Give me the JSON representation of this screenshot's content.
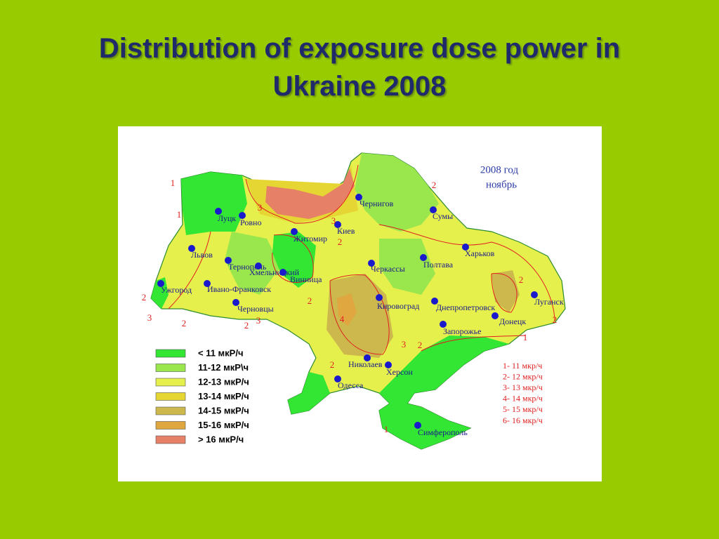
{
  "title": "Distribution of exposure dose power in Ukraine 2008",
  "map": {
    "header": [
      "2008 год",
      "ноябрь"
    ],
    "cities": [
      "Луцк",
      "Ровно",
      "Житомир",
      "Киев",
      "Чернигов",
      "Сумы",
      "Харьков",
      "Полтава",
      "Черкассы",
      "Львов",
      "Тернополь",
      "Хмельницкий",
      "Винница",
      "Ужгород",
      "Ивано-Франковск",
      "Черновцы",
      "Кировоград",
      "Днепропетровск",
      "Луганск",
      "Донецк",
      "Запорожье",
      "Николаев",
      "Херсон",
      "Одесса",
      "Симферополь"
    ],
    "legend": [
      {
        "label": "< 11 мкР/ч",
        "color": "#33e633"
      },
      {
        "label": "11-12 мкР\\ч",
        "color": "#99e64d"
      },
      {
        "label": "12-13 мкР/ч",
        "color": "#e6f04d"
      },
      {
        "label": "13-14 мкР/ч",
        "color": "#e6d633"
      },
      {
        "label": "14-15 мкР/ч",
        "color": "#ccb84d"
      },
      {
        "label": "15-16 мкР/ч",
        "color": "#e0a640"
      },
      {
        "label": "> 16 мкР/ч",
        "color": "#e68066"
      }
    ],
    "contour_legend": [
      "1- 11 мкр/ч",
      "2- 12 мкр/ч",
      "3- 13 мкр/ч",
      "4- 14 мкр/ч",
      "5- 15 мкр/ч",
      "6- 16 мкр/ч"
    ],
    "contour_labels": [
      "1",
      "1",
      "2",
      "3",
      "2",
      "2",
      "3",
      "3",
      "3",
      "2",
      "2",
      "4",
      "3",
      "2",
      "2",
      "2",
      "2",
      "1",
      "1",
      "2"
    ]
  }
}
